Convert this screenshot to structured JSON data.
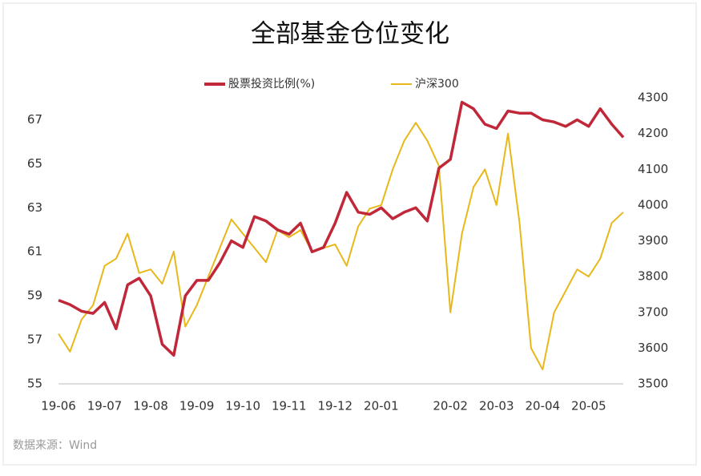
{
  "chart_data": {
    "type": "line",
    "title": "全部基金仓位变化",
    "source": "数据来源：Wind",
    "categories": [
      "19-06",
      null,
      null,
      null,
      "19-07",
      null,
      null,
      null,
      "19-08",
      null,
      null,
      null,
      "19-09",
      null,
      null,
      null,
      "19-10",
      null,
      null,
      null,
      "19-11",
      null,
      null,
      null,
      "19-12",
      null,
      null,
      null,
      "20-01",
      null,
      null,
      null,
      null,
      null,
      "20-02",
      null,
      null,
      null,
      "20-03",
      null,
      null,
      null,
      "20-04",
      null,
      null,
      null,
      "20-05",
      null,
      null,
      null
    ],
    "series": [
      {
        "name": "股票投资比例(%)",
        "color": "#c0283a",
        "values": [
          58.8,
          58.6,
          58.3,
          58.2,
          58.7,
          57.5,
          59.5,
          59.8,
          59.0,
          56.8,
          56.3,
          59.0,
          59.7,
          59.7,
          60.5,
          61.5,
          61.2,
          62.6,
          62.4,
          62.0,
          61.8,
          62.3,
          61.0,
          61.2,
          62.3,
          63.7,
          62.8,
          62.7,
          63.0,
          62.5,
          62.8,
          63.0,
          62.4,
          64.8,
          65.2,
          67.8,
          67.5,
          66.8,
          66.6,
          67.4,
          67.3,
          67.3,
          67.0,
          66.9,
          66.7,
          67.0,
          66.7,
          67.5,
          66.8,
          66.2
        ]
      },
      {
        "name": "沪深300",
        "color": "#e8b81a",
        "axis": "y2",
        "values": [
          3640,
          3590,
          3680,
          3720,
          3830,
          3850,
          3920,
          3810,
          3820,
          3780,
          3870,
          3660,
          3720,
          3800,
          3880,
          3960,
          3920,
          3880,
          3840,
          3930,
          3910,
          3930,
          3870,
          3880,
          3890,
          3830,
          3940,
          3990,
          4000,
          4100,
          4180,
          4230,
          4180,
          4110,
          3700,
          3920,
          4050,
          4100,
          4000,
          4200,
          3950,
          3600,
          3540,
          3700,
          3760,
          3820,
          3800,
          3850,
          3950,
          3980
        ]
      }
    ],
    "ylim": [
      55,
      68
    ],
    "yticks": [
      55,
      57,
      59,
      61,
      63,
      65,
      67
    ],
    "y2lim": [
      3500,
      4300
    ],
    "y2ticks": [
      3500,
      3600,
      3700,
      3800,
      3900,
      4000,
      4100,
      4200,
      4300
    ]
  }
}
